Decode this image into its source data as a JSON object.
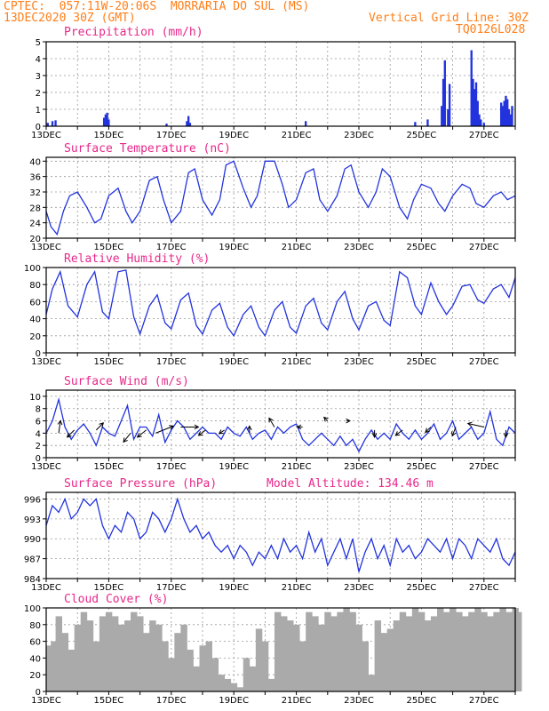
{
  "header": {
    "left_line1": "CPTEC:  057:11W-20:06S  MORRARIA DO SUL (MS)",
    "left_line2": "13DEC2020 30Z (GMT)",
    "right_line2": "Vertical Grid Line: 30Z",
    "right_line3": "TQ0126L028"
  },
  "colors": {
    "series": "#2233dd",
    "cloud": "#aaaaaa",
    "title": "#e8288a",
    "header": "#ff7f1a"
  },
  "x_axis": {
    "labels": [
      "13DEC",
      "15DEC",
      "17DEC",
      "19DEC",
      "21DEC",
      "23DEC",
      "25DEC",
      "27DEC"
    ],
    "start_day": 13,
    "end_day": 28
  },
  "chart_data": [
    {
      "id": "precip",
      "type": "bar",
      "title": "Precipitation (mm/h)",
      "ylim": [
        0,
        5
      ],
      "yticks": [
        "0",
        "1",
        "2",
        "3",
        "4",
        "5"
      ],
      "x": [
        13.05,
        13.2,
        13.3,
        14.85,
        14.9,
        14.95,
        15.0,
        16.85,
        17.5,
        17.55,
        17.6,
        21.3,
        24.8,
        25.2,
        25.65,
        25.7,
        25.75,
        25.85,
        25.9,
        26.6,
        26.65,
        26.7,
        26.75,
        26.8,
        26.85,
        26.9,
        27.0,
        27.55,
        27.6,
        27.65,
        27.7,
        27.75,
        27.8,
        27.85,
        27.9
      ],
      "values": [
        0.2,
        0.3,
        0.35,
        0.5,
        0.7,
        0.8,
        0.4,
        0.15,
        0.3,
        0.6,
        0.2,
        0.3,
        0.25,
        0.4,
        1.2,
        2.8,
        3.9,
        1.0,
        2.5,
        4.5,
        2.8,
        2.2,
        2.6,
        1.5,
        0.7,
        0.4,
        0.2,
        1.4,
        1.2,
        1.5,
        1.8,
        1.6,
        1.0,
        0.7,
        1.2
      ]
    },
    {
      "id": "temp",
      "type": "line",
      "title": "Surface Temperature (nC)",
      "ylim": [
        20,
        41
      ],
      "yticks": [
        "20",
        "24",
        "28",
        "32",
        "36",
        "40"
      ],
      "x": [
        13.0,
        13.15,
        13.35,
        13.55,
        13.75,
        14.0,
        14.3,
        14.55,
        14.75,
        15.0,
        15.3,
        15.55,
        15.75,
        16.0,
        16.3,
        16.55,
        16.75,
        17.0,
        17.3,
        17.55,
        17.75,
        18.0,
        18.3,
        18.55,
        18.75,
        19.0,
        19.3,
        19.55,
        19.75,
        20.0,
        20.3,
        20.55,
        20.75,
        21.0,
        21.3,
        21.55,
        21.75,
        22.0,
        22.3,
        22.55,
        22.75,
        23.0,
        23.3,
        23.55,
        23.75,
        24.0,
        24.3,
        24.55,
        24.75,
        25.0,
        25.3,
        25.55,
        25.75,
        26.0,
        26.3,
        26.55,
        26.75,
        27.0,
        27.3,
        27.55,
        27.75,
        28.0
      ],
      "values": [
        27,
        23,
        21,
        27,
        31,
        32,
        28,
        24,
        25,
        31,
        33,
        27,
        24,
        27,
        35,
        36,
        30,
        24,
        27,
        37,
        38,
        30,
        26,
        30,
        39,
        40,
        33,
        28,
        31,
        40,
        40,
        34,
        28,
        30,
        37,
        38,
        30,
        27,
        31,
        38,
        39,
        32,
        28,
        32,
        38,
        36,
        28,
        25,
        30,
        34,
        33,
        29,
        27,
        31,
        34,
        33,
        29,
        28,
        31,
        32,
        30,
        31
      ]
    },
    {
      "id": "rh",
      "type": "line",
      "title": "Relative Humidity (%)",
      "ylim": [
        0,
        100
      ],
      "yticks": [
        "0",
        "20",
        "40",
        "60",
        "80",
        "100"
      ],
      "x": [
        13.0,
        13.2,
        13.45,
        13.7,
        14.0,
        14.3,
        14.55,
        14.8,
        15.0,
        15.3,
        15.55,
        15.8,
        16.0,
        16.3,
        16.55,
        16.8,
        17.0,
        17.3,
        17.55,
        17.8,
        18.0,
        18.3,
        18.55,
        18.8,
        19.0,
        19.3,
        19.55,
        19.8,
        20.0,
        20.3,
        20.55,
        20.8,
        21.0,
        21.3,
        21.55,
        21.8,
        22.0,
        22.3,
        22.55,
        22.8,
        23.0,
        23.3,
        23.55,
        23.8,
        24.0,
        24.3,
        24.55,
        24.8,
        25.0,
        25.3,
        25.55,
        25.8,
        26.0,
        26.3,
        26.55,
        26.8,
        27.0,
        27.3,
        27.55,
        27.8,
        28.0
      ],
      "values": [
        45,
        75,
        95,
        55,
        42,
        80,
        95,
        48,
        40,
        95,
        97,
        42,
        22,
        55,
        68,
        35,
        28,
        62,
        70,
        32,
        22,
        50,
        58,
        30,
        20,
        45,
        55,
        30,
        20,
        50,
        60,
        30,
        23,
        55,
        64,
        35,
        27,
        60,
        72,
        40,
        27,
        55,
        60,
        38,
        32,
        95,
        88,
        55,
        45,
        82,
        60,
        45,
        55,
        78,
        80,
        62,
        58,
        75,
        80,
        65,
        88
      ]
    },
    {
      "id": "wind",
      "type": "line",
      "title": "Surface Wind (m/s)",
      "ylim": [
        0,
        11
      ],
      "yticks": [
        "0",
        "2",
        "4",
        "6",
        "8",
        "10"
      ],
      "x": [
        13.0,
        13.2,
        13.4,
        13.6,
        13.8,
        14.0,
        14.2,
        14.4,
        14.6,
        14.8,
        15.0,
        15.2,
        15.4,
        15.6,
        15.8,
        16.0,
        16.2,
        16.4,
        16.6,
        16.8,
        17.0,
        17.2,
        17.4,
        17.6,
        17.8,
        18.0,
        18.2,
        18.4,
        18.6,
        18.8,
        19.0,
        19.2,
        19.4,
        19.6,
        19.8,
        20.0,
        20.2,
        20.4,
        20.6,
        20.8,
        21.0,
        21.2,
        21.4,
        21.6,
        21.8,
        22.0,
        22.2,
        22.4,
        22.6,
        22.8,
        23.0,
        23.2,
        23.4,
        23.6,
        23.8,
        24.0,
        24.2,
        24.4,
        24.6,
        24.8,
        25.0,
        25.2,
        25.4,
        25.6,
        25.8,
        26.0,
        26.2,
        26.4,
        26.6,
        26.8,
        27.0,
        27.2,
        27.4,
        27.6,
        27.8,
        28.0
      ],
      "values": [
        4,
        6,
        9.5,
        5,
        3,
        4.5,
        5.5,
        4,
        2,
        5,
        4,
        3.5,
        6,
        8.5,
        3,
        5,
        5,
        3.5,
        7,
        2.5,
        4.5,
        6,
        5,
        3,
        4,
        5,
        4,
        4,
        3,
        5,
        4,
        3.5,
        5,
        3,
        4,
        4.5,
        3,
        5,
        4,
        5,
        5.5,
        3,
        2,
        3,
        4,
        3,
        2,
        3.5,
        2,
        3,
        1,
        3,
        4.5,
        3,
        4,
        3,
        5.5,
        4,
        3,
        4.5,
        3,
        4,
        5.5,
        3,
        4,
        6,
        3,
        4,
        5,
        3,
        4,
        7.5,
        3,
        2,
        5,
        4
      ]
    },
    {
      "id": "pres",
      "type": "line",
      "title": "Surface Pressure (hPa)",
      "annotation": "Model Altitude: 134.46  m",
      "ylim": [
        984,
        997
      ],
      "yticks": [
        "984",
        "987",
        "990",
        "993",
        "996"
      ],
      "x": [
        13.0,
        13.2,
        13.4,
        13.6,
        13.8,
        14.0,
        14.2,
        14.4,
        14.6,
        14.8,
        15.0,
        15.2,
        15.4,
        15.6,
        15.8,
        16.0,
        16.2,
        16.4,
        16.6,
        16.8,
        17.0,
        17.2,
        17.4,
        17.6,
        17.8,
        18.0,
        18.2,
        18.4,
        18.6,
        18.8,
        19.0,
        19.2,
        19.4,
        19.6,
        19.8,
        20.0,
        20.2,
        20.4,
        20.6,
        20.8,
        21.0,
        21.2,
        21.4,
        21.6,
        21.8,
        22.0,
        22.2,
        22.4,
        22.6,
        22.8,
        23.0,
        23.2,
        23.4,
        23.6,
        23.8,
        24.0,
        24.2,
        24.4,
        24.6,
        24.8,
        25.0,
        25.2,
        25.4,
        25.6,
        25.8,
        26.0,
        26.2,
        26.4,
        26.6,
        26.8,
        27.0,
        27.2,
        27.4,
        27.6,
        27.8,
        28.0
      ],
      "values": [
        992,
        995,
        994,
        996,
        993,
        994,
        996,
        995,
        996,
        992,
        990,
        992,
        991,
        994,
        993,
        990,
        991,
        994,
        993,
        991,
        993,
        996,
        993,
        991,
        992,
        990,
        991,
        989,
        988,
        989,
        987,
        989,
        988,
        986,
        988,
        987,
        989,
        987,
        990,
        988,
        989,
        987,
        991,
        988,
        990,
        986,
        988,
        990,
        987,
        990,
        985,
        988,
        990,
        987,
        989,
        986,
        990,
        988,
        989,
        987,
        988,
        990,
        989,
        988,
        990,
        987,
        990,
        989,
        987,
        990,
        989,
        988,
        990,
        987,
        986,
        988
      ]
    },
    {
      "id": "cloud",
      "type": "area",
      "title": "Cloud Cover (%)",
      "ylim": [
        0,
        100
      ],
      "yticks": [
        "0",
        "20",
        "40",
        "60",
        "80",
        "100"
      ],
      "x": [
        13.0,
        13.15,
        13.3,
        13.5,
        13.7,
        13.9,
        14.1,
        14.3,
        14.5,
        14.7,
        14.9,
        15.1,
        15.3,
        15.5,
        15.7,
        15.9,
        16.1,
        16.3,
        16.5,
        16.7,
        16.9,
        17.1,
        17.3,
        17.5,
        17.7,
        17.9,
        18.1,
        18.3,
        18.5,
        18.7,
        18.9,
        19.1,
        19.3,
        19.5,
        19.7,
        19.9,
        20.1,
        20.3,
        20.5,
        20.7,
        20.9,
        21.1,
        21.3,
        21.5,
        21.7,
        21.9,
        22.1,
        22.3,
        22.5,
        22.7,
        22.9,
        23.1,
        23.3,
        23.5,
        23.7,
        23.9,
        24.1,
        24.3,
        24.5,
        24.7,
        24.9,
        25.1,
        25.3,
        25.5,
        25.7,
        25.9,
        26.1,
        26.3,
        26.5,
        26.7,
        26.9,
        27.1,
        27.3,
        27.5,
        27.7,
        27.9,
        28.0
      ],
      "values": [
        55,
        60,
        90,
        70,
        50,
        80,
        95,
        85,
        60,
        90,
        95,
        90,
        80,
        85,
        95,
        90,
        70,
        85,
        80,
        60,
        40,
        70,
        80,
        50,
        30,
        55,
        60,
        40,
        20,
        15,
        10,
        5,
        40,
        30,
        75,
        60,
        15,
        95,
        90,
        85,
        80,
        60,
        95,
        90,
        80,
        95,
        90,
        95,
        100,
        95,
        80,
        60,
        20,
        85,
        70,
        75,
        85,
        95,
        90,
        100,
        95,
        85,
        90,
        100,
        95,
        100,
        95,
        90,
        95,
        100,
        95,
        90,
        95,
        100,
        95,
        100,
        95
      ]
    }
  ]
}
